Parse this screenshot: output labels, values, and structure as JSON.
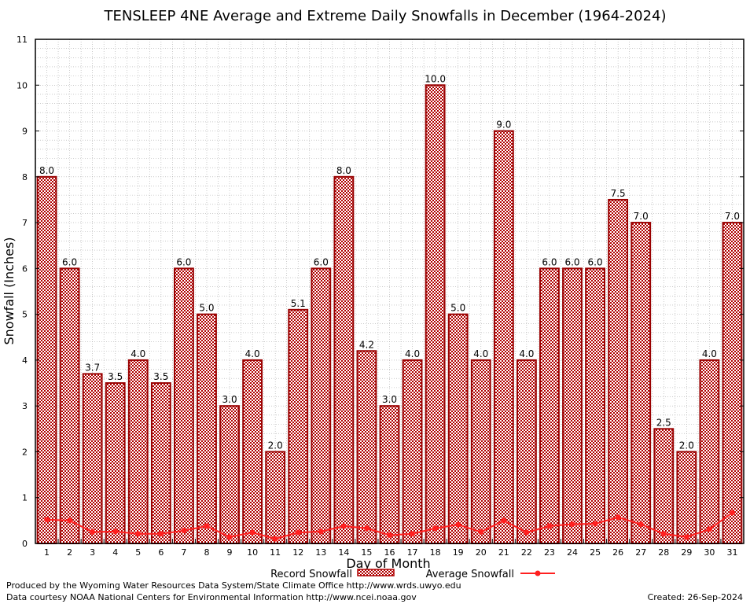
{
  "chart_data": {
    "type": "bar",
    "title": "TENSLEEP 4NE Average and Extreme Daily Snowfalls in December (1964-2024)",
    "xlabel": "Day of Month",
    "ylabel": "Snowfall (Inches)",
    "ylim": [
      0,
      11
    ],
    "yticks": [
      "0",
      "1",
      "2",
      "3",
      "4",
      "5",
      "6",
      "7",
      "8",
      "9",
      "10",
      "11"
    ],
    "grid": true,
    "categories": [
      "1",
      "2",
      "3",
      "4",
      "5",
      "6",
      "7",
      "8",
      "9",
      "10",
      "11",
      "12",
      "13",
      "14",
      "15",
      "16",
      "17",
      "18",
      "19",
      "20",
      "21",
      "22",
      "23",
      "24",
      "25",
      "26",
      "27",
      "28",
      "29",
      "30",
      "31"
    ],
    "series": [
      {
        "name": "Record Snowfall",
        "type": "bar",
        "color": "#b00000",
        "values": [
          8.0,
          6.0,
          3.7,
          3.5,
          4.0,
          3.5,
          6.0,
          5.0,
          3.0,
          4.0,
          2.0,
          5.1,
          6.0,
          8.0,
          4.2,
          3.0,
          4.0,
          10.0,
          5.0,
          4.0,
          9.0,
          4.0,
          6.0,
          6.0,
          6.0,
          7.5,
          7.0,
          2.5,
          2.0,
          4.0,
          7.0
        ],
        "labels": [
          "8.0",
          "6.0",
          "3.7",
          "3.5",
          "4.0",
          "3.5",
          "6.0",
          "5.0",
          "3.0",
          "4.0",
          "2.0",
          "5.1",
          "6.0",
          "8.0",
          "4.2",
          "3.0",
          "4.0",
          "10.0",
          "5.0",
          "4.0",
          "9.0",
          "4.0",
          "6.0",
          "6.0",
          "6.0",
          "7.5",
          "7.0",
          "2.5",
          "2.0",
          "4.0",
          "7.0"
        ]
      },
      {
        "name": "Average Snowfall",
        "type": "line",
        "color": "#ff2020",
        "values": [
          0.52,
          0.5,
          0.25,
          0.26,
          0.21,
          0.21,
          0.28,
          0.38,
          0.14,
          0.24,
          0.1,
          0.24,
          0.26,
          0.38,
          0.33,
          0.18,
          0.21,
          0.33,
          0.41,
          0.25,
          0.5,
          0.24,
          0.38,
          0.42,
          0.43,
          0.57,
          0.42,
          0.21,
          0.14,
          0.31,
          0.67
        ]
      }
    ],
    "legend_position": "bottom-center"
  },
  "footer": {
    "line1": "Produced by the Wyoming Water Resources Data System/State Climate Office http://www.wrds.uwyo.edu",
    "line2": "Data courtesy NOAA National Centers for Environmental Information http://www.ncei.noaa.gov",
    "created": "Created: 26-Sep-2024"
  }
}
